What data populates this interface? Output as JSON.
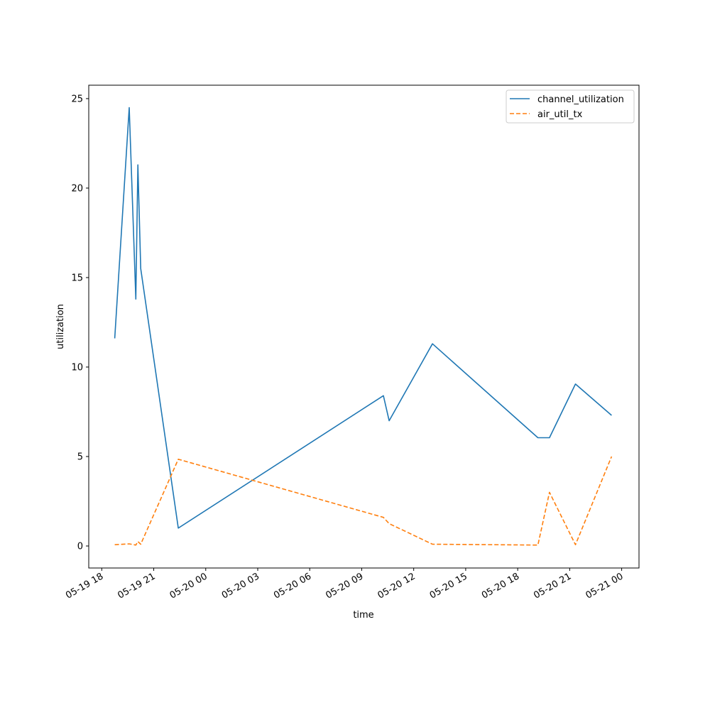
{
  "chart_data": {
    "type": "line",
    "title": "",
    "xlabel": "time",
    "ylabel": "utilization",
    "xlim": [
      "2024-05-19 17:15",
      "2024-05-21 01:00"
    ],
    "ylim": [
      -1.23,
      25.75
    ],
    "y_ticks": [
      0,
      5,
      10,
      15,
      20,
      25
    ],
    "x_ticks": [
      {
        "t": "2024-05-19 18:00",
        "label": "05-19 18"
      },
      {
        "t": "2024-05-19 21:00",
        "label": "05-19 21"
      },
      {
        "t": "2024-05-20 00:00",
        "label": "05-20 00"
      },
      {
        "t": "2024-05-20 03:00",
        "label": "05-20 03"
      },
      {
        "t": "2024-05-20 06:00",
        "label": "05-20 06"
      },
      {
        "t": "2024-05-20 09:00",
        "label": "05-20 09"
      },
      {
        "t": "2024-05-20 12:00",
        "label": "05-20 12"
      },
      {
        "t": "2024-05-20 15:00",
        "label": "05-20 15"
      },
      {
        "t": "2024-05-20 18:00",
        "label": "05-20 18"
      },
      {
        "t": "2024-05-20 21:00",
        "label": "05-20 21"
      },
      {
        "t": "2024-05-21 00:00",
        "label": "05-21 00"
      }
    ],
    "legend": "top-right",
    "grid": false,
    "series": [
      {
        "name": "channel_utilization",
        "color": "#1f77b4",
        "dash": "solid",
        "points": [
          {
            "t": "2024-05-19 18:45",
            "y": 11.6
          },
          {
            "t": "2024-05-19 19:35",
            "y": 24.5
          },
          {
            "t": "2024-05-19 19:58",
            "y": 13.8
          },
          {
            "t": "2024-05-19 20:05",
            "y": 21.3
          },
          {
            "t": "2024-05-19 20:15",
            "y": 15.5
          },
          {
            "t": "2024-05-19 22:25",
            "y": 1.0
          },
          {
            "t": "2024-05-20 10:15",
            "y": 8.4
          },
          {
            "t": "2024-05-20 10:35",
            "y": 7.0
          },
          {
            "t": "2024-05-20 13:05",
            "y": 11.3
          },
          {
            "t": "2024-05-20 19:10",
            "y": 6.05
          },
          {
            "t": "2024-05-20 19:50",
            "y": 6.05
          },
          {
            "t": "2024-05-20 21:20",
            "y": 9.05
          },
          {
            "t": "2024-05-20 23:25",
            "y": 7.3
          }
        ]
      },
      {
        "name": "air_util_tx",
        "color": "#ff7f0e",
        "dash": "dashed",
        "points": [
          {
            "t": "2024-05-19 18:45",
            "y": 0.07
          },
          {
            "t": "2024-05-19 19:35",
            "y": 0.12
          },
          {
            "t": "2024-05-19 19:58",
            "y": 0.05
          },
          {
            "t": "2024-05-19 20:05",
            "y": 0.25
          },
          {
            "t": "2024-05-19 20:15",
            "y": 0.1
          },
          {
            "t": "2024-05-19 22:25",
            "y": 4.85
          },
          {
            "t": "2024-05-20 10:15",
            "y": 1.6
          },
          {
            "t": "2024-05-20 10:35",
            "y": 1.25
          },
          {
            "t": "2024-05-20 13:05",
            "y": 0.1
          },
          {
            "t": "2024-05-20 19:10",
            "y": 0.05
          },
          {
            "t": "2024-05-20 19:50",
            "y": 3.0
          },
          {
            "t": "2024-05-20 21:20",
            "y": 0.07
          },
          {
            "t": "2024-05-20 23:25",
            "y": 5.0
          }
        ]
      }
    ]
  }
}
